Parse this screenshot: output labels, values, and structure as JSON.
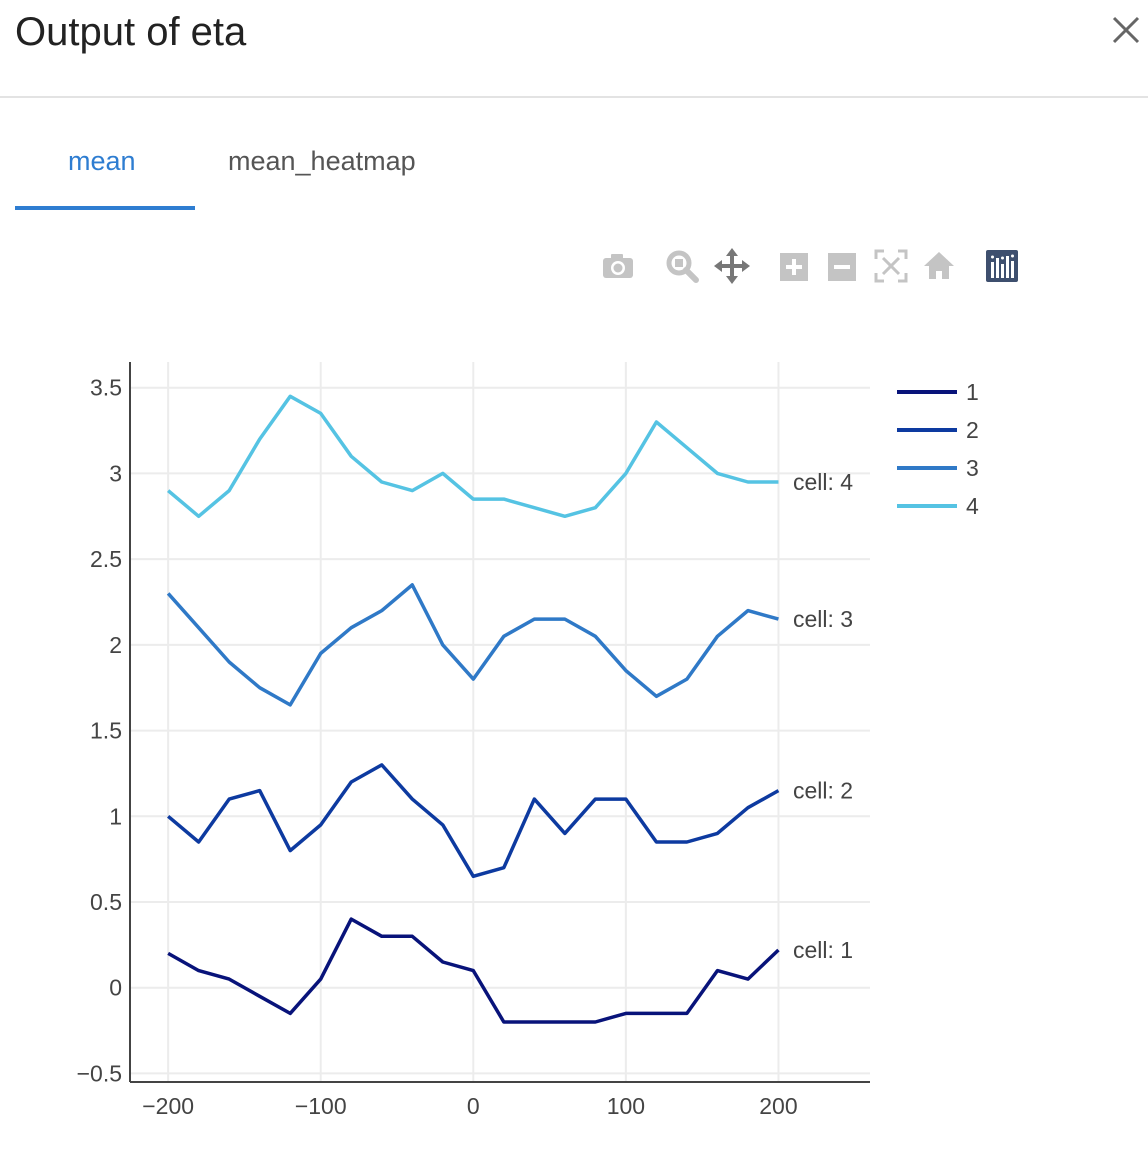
{
  "dialog": {
    "title": "Output of eta",
    "close_icon": "close-icon"
  },
  "tabs": [
    {
      "label": "mean",
      "active": true
    },
    {
      "label": "mean_heatmap",
      "active": false
    }
  ],
  "modebar": {
    "icons": [
      "camera-icon",
      "zoom-icon",
      "pan-icon",
      "zoom-in-icon",
      "zoom-out-icon",
      "autoscale-icon",
      "reset-axes-icon",
      "plotly-logo-icon"
    ]
  },
  "colors": {
    "accent": "#2e7dd1",
    "cell1": "#08137a",
    "cell2": "#0d3aa0",
    "cell3": "#2f79c7",
    "cell4": "#55c3e3"
  },
  "chart_data": {
    "type": "line",
    "title": "",
    "xlabel": "",
    "ylabel": "",
    "xlim": [
      -225,
      260
    ],
    "ylim": [
      -0.55,
      3.65
    ],
    "xticks": [
      -200,
      -100,
      0,
      100,
      200
    ],
    "xtick_labels": [
      "−200",
      "−100",
      "0",
      "100",
      "200"
    ],
    "yticks": [
      -0.5,
      0,
      0.5,
      1,
      1.5,
      2,
      2.5,
      3,
      3.5
    ],
    "ytick_labels": [
      "−0.5",
      "0",
      "0.5",
      "1",
      "1.5",
      "2",
      "2.5",
      "3",
      "3.5"
    ],
    "grid": true,
    "legend_position": "top-right",
    "x": [
      -200,
      -180,
      -160,
      -140,
      -120,
      -100,
      -80,
      -60,
      -40,
      -20,
      0,
      20,
      40,
      60,
      80,
      100,
      120,
      140,
      160,
      180,
      200
    ],
    "series": [
      {
        "name": "1",
        "annotation": "cell: 1",
        "color": "#08137a",
        "values": [
          0.2,
          0.1,
          0.05,
          -0.05,
          -0.15,
          0.05,
          0.4,
          0.3,
          0.3,
          0.15,
          0.1,
          -0.2,
          -0.2,
          -0.2,
          -0.2,
          -0.15,
          -0.15,
          -0.15,
          0.1,
          0.05,
          0.22
        ]
      },
      {
        "name": "2",
        "annotation": "cell: 2",
        "color": "#0d3aa0",
        "values": [
          1.0,
          0.85,
          1.1,
          1.15,
          0.8,
          0.95,
          1.2,
          1.3,
          1.1,
          0.95,
          0.65,
          0.7,
          1.1,
          0.9,
          1.1,
          1.1,
          0.85,
          0.85,
          0.9,
          1.05,
          1.15
        ]
      },
      {
        "name": "3",
        "annotation": "cell: 3",
        "color": "#2f79c7",
        "values": [
          2.3,
          2.1,
          1.9,
          1.75,
          1.65,
          1.95,
          2.1,
          2.2,
          2.35,
          2.0,
          1.8,
          2.05,
          2.15,
          2.15,
          2.05,
          1.85,
          1.7,
          1.8,
          2.05,
          2.2,
          2.15
        ]
      },
      {
        "name": "4",
        "annotation": "cell: 4",
        "color": "#55c3e3",
        "values": [
          2.9,
          2.75,
          2.9,
          3.2,
          3.45,
          3.35,
          3.1,
          2.95,
          2.9,
          3.0,
          2.85,
          2.85,
          2.8,
          2.75,
          2.8,
          3.0,
          3.3,
          3.15,
          3.0,
          2.95,
          2.95
        ]
      }
    ]
  }
}
